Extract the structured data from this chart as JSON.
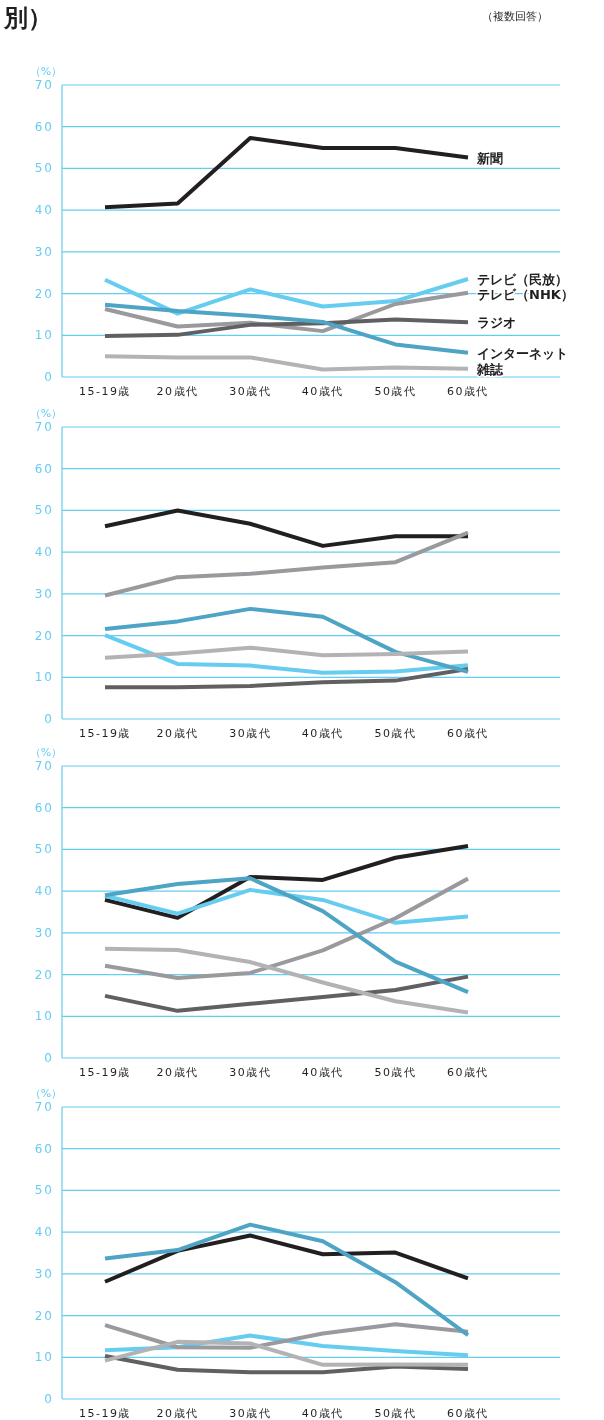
{
  "chart_data": [
    {
      "type": "line",
      "title": "別）",
      "annotations": [
        "（複数回答）"
      ],
      "ylabel": "（%）",
      "categories": [
        "15-19歳",
        "20歳代",
        "30歳代",
        "40歳代",
        "50歳代",
        "60歳代"
      ],
      "ylim": [
        0,
        70
      ],
      "yticks": [
        0,
        10,
        20,
        30,
        40,
        50,
        60,
        70
      ],
      "grid": "y",
      "series": [
        {
          "name": "新聞",
          "color": "#231f20",
          "values": [
            40.7,
            41.6,
            57.3,
            54.9,
            54.9,
            52.6
          ]
        },
        {
          "name": "テレビ（民放）",
          "color": "#66ccf0",
          "values": [
            23.3,
            15.2,
            21.0,
            16.9,
            18.2,
            23.5
          ]
        },
        {
          "name": "テレビ（NHK）",
          "color": "#9a9a9e",
          "values": [
            16.3,
            12.1,
            13.0,
            11.0,
            17.5,
            20.2
          ]
        },
        {
          "name": "ラジオ",
          "color": "#606062",
          "values": [
            9.8,
            10.1,
            12.5,
            12.9,
            13.8,
            13.1
          ]
        },
        {
          "name": "インターネット",
          "color": "#4ea4c4",
          "values": [
            17.3,
            15.8,
            14.7,
            13.2,
            7.8,
            5.8
          ]
        },
        {
          "name": "雑誌",
          "color": "#b3b3b5",
          "values": [
            5.0,
            4.7,
            4.7,
            1.8,
            2.3,
            2.0
          ]
        }
      ]
    },
    {
      "type": "line",
      "ylabel": "（%）",
      "categories": [
        "15-19歳",
        "20歳代",
        "30歳代",
        "40歳代",
        "50歳代",
        "60歳代"
      ],
      "ylim": [
        0,
        70
      ],
      "yticks": [
        0,
        10,
        20,
        30,
        40,
        50,
        60,
        70
      ],
      "grid": "y",
      "series": [
        {
          "color": "#231f20",
          "values": [
            46.2,
            50.0,
            46.8,
            41.5,
            43.8,
            43.8
          ]
        },
        {
          "color": "#66ccf0",
          "values": [
            20.1,
            13.2,
            12.8,
            11.1,
            11.4,
            12.9
          ]
        },
        {
          "color": "#9a9a9e",
          "values": [
            29.6,
            34.0,
            34.8,
            36.3,
            37.6,
            44.7
          ]
        },
        {
          "color": "#606062",
          "values": [
            7.6,
            7.6,
            7.9,
            8.8,
            9.2,
            12.0
          ]
        },
        {
          "color": "#4ea4c4",
          "values": [
            21.6,
            23.4,
            26.4,
            24.5,
            16.1,
            11.3
          ]
        },
        {
          "color": "#b3b3b5",
          "values": [
            14.7,
            15.7,
            17.1,
            15.3,
            15.6,
            16.2
          ]
        }
      ]
    },
    {
      "type": "line",
      "ylabel": "（%）",
      "categories": [
        "15-19歳",
        "20歳代",
        "30歳代",
        "40歳代",
        "50歳代",
        "60歳代"
      ],
      "ylim": [
        0,
        70
      ],
      "yticks": [
        0,
        10,
        20,
        30,
        40,
        50,
        60,
        70
      ],
      "grid": "y",
      "series": [
        {
          "color": "#231f20",
          "values": [
            37.9,
            33.6,
            43.4,
            42.7,
            48.0,
            50.8
          ]
        },
        {
          "color": "#66ccf0",
          "values": [
            38.9,
            34.6,
            40.3,
            37.9,
            32.4,
            33.9
          ]
        },
        {
          "color": "#9a9a9e",
          "values": [
            22.1,
            19.2,
            20.4,
            25.8,
            33.5,
            43.0
          ]
        },
        {
          "color": "#606062",
          "values": [
            14.9,
            11.3,
            13.0,
            14.6,
            16.3,
            19.5
          ]
        },
        {
          "color": "#4ea4c4",
          "values": [
            39.0,
            41.7,
            43.1,
            35.2,
            23.1,
            15.8
          ]
        },
        {
          "color": "#b3b3b5",
          "values": [
            26.2,
            25.9,
            23.0,
            18.1,
            13.6,
            10.9
          ]
        }
      ]
    },
    {
      "type": "line",
      "ylabel": "（%）",
      "categories": [
        "15-19歳",
        "20歳代",
        "30歳代",
        "40歳代",
        "50歳代",
        "60歳代"
      ],
      "ylim": [
        0,
        70
      ],
      "yticks": [
        0,
        10,
        20,
        30,
        40,
        50,
        60,
        70
      ],
      "grid": "y",
      "series": [
        {
          "color": "#231f20",
          "values": [
            28.1,
            35.5,
            39.2,
            34.7,
            35.1,
            28.9
          ]
        },
        {
          "color": "#66ccf0",
          "values": [
            11.7,
            12.4,
            15.2,
            12.7,
            11.5,
            10.5
          ]
        },
        {
          "color": "#9a9a9e",
          "values": [
            17.7,
            12.4,
            12.3,
            15.7,
            17.9,
            16.1
          ]
        },
        {
          "color": "#606062",
          "values": [
            10.3,
            7.0,
            6.4,
            6.4,
            7.8,
            7.2
          ]
        },
        {
          "color": "#4ea4c4",
          "values": [
            33.7,
            35.7,
            41.8,
            37.8,
            28.0,
            15.3
          ]
        },
        {
          "color": "#b3b3b5",
          "values": [
            9.2,
            13.7,
            13.3,
            8.2,
            8.3,
            8.2
          ]
        }
      ]
    }
  ]
}
